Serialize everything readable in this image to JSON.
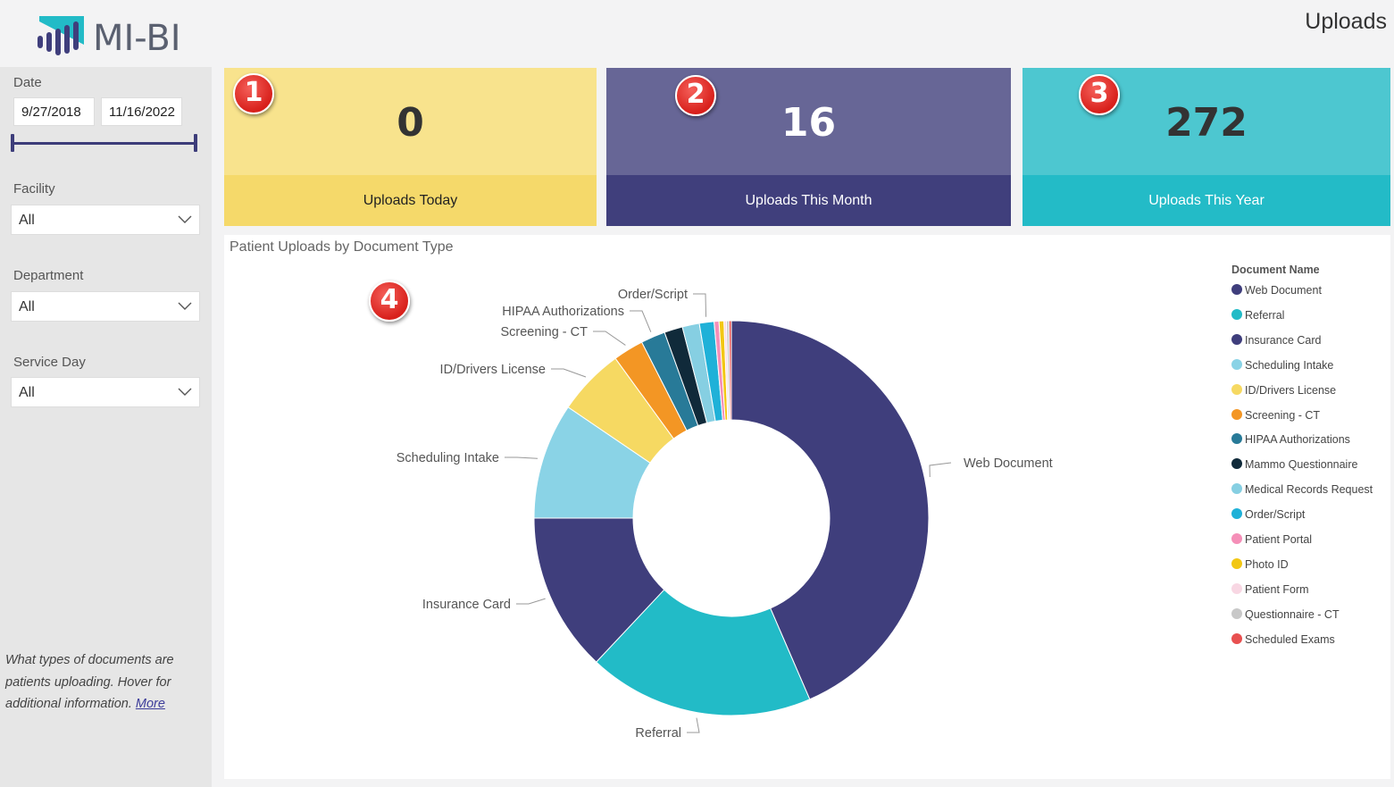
{
  "app": {
    "logo_text": "MI-BI",
    "page_title": "Uploads"
  },
  "filters": {
    "date": {
      "label": "Date",
      "start": "9/27/2018",
      "end": "11/16/2022"
    },
    "facility": {
      "label": "Facility",
      "value": "All"
    },
    "department": {
      "label": "Department",
      "value": "All"
    },
    "service_day": {
      "label": "Service Day",
      "value": "All"
    }
  },
  "side_note": {
    "text": "What types of documents are patients uploading. Hover for additional information.",
    "link": "More"
  },
  "kpis": [
    {
      "badge": "1",
      "value": "0",
      "label": "Uploads Today",
      "bg": "#f8e38d",
      "band": "#f5d96a",
      "value_color": "#333333",
      "label_color": "#222222"
    },
    {
      "badge": "2",
      "value": "16",
      "label": "Uploads This Month",
      "bg": "#676696",
      "band": "#403f7c",
      "value_color": "#ffffff",
      "label_color": "#ffffff"
    },
    {
      "badge": "3",
      "value": "272",
      "label": "Uploads This Year",
      "bg": "#4dc7d0",
      "band": "#23bbc7",
      "value_color": "#333333",
      "label_color": "#ffffff"
    }
  ],
  "chart_badge": "4",
  "chart_data": {
    "type": "donut",
    "title": "Patient Uploads by Document Type",
    "legend_title": "Document Name",
    "legend_position": "right",
    "slices": [
      {
        "name": "Web Document",
        "value": 43.5,
        "color": "#3f3e7c",
        "label": "Web Document"
      },
      {
        "name": "Referral",
        "value": 18.5,
        "color": "#22bbc7",
        "label": "Referral"
      },
      {
        "name": "Insurance Card",
        "value": 13.0,
        "color": "#3f3e7c",
        "label": "Insurance Card"
      },
      {
        "name": "Scheduling Intake",
        "value": 9.5,
        "color": "#8ad3e6",
        "label": "Scheduling Intake"
      },
      {
        "name": "ID/Drivers License",
        "value": 5.5,
        "color": "#f6d962",
        "label": "ID/Drivers License"
      },
      {
        "name": "Screening - CT",
        "value": 2.5,
        "color": "#f39624",
        "label": "Screening - CT"
      },
      {
        "name": "HIPAA Authorizations",
        "value": 2.0,
        "color": "#287a98",
        "label": "HIPAA Authorizations"
      },
      {
        "name": "Mammo Questionnaire",
        "value": 1.5,
        "color": "#102a3a",
        "label": ""
      },
      {
        "name": "Medical Records Request",
        "value": 1.4,
        "color": "#86cfe2",
        "label": ""
      },
      {
        "name": "Order/Script",
        "value": 1.2,
        "color": "#1fb1d8",
        "label": "Order/Script"
      },
      {
        "name": "Patient Portal",
        "value": 0.4,
        "color": "#f58fb8",
        "label": ""
      },
      {
        "name": "Photo ID",
        "value": 0.4,
        "color": "#f2c714",
        "label": ""
      },
      {
        "name": "Patient Form",
        "value": 0.2,
        "color": "#f8d7e3",
        "label": ""
      },
      {
        "name": "Questionnaire - CT",
        "value": 0.2,
        "color": "#c8c8c8",
        "label": ""
      },
      {
        "name": "Scheduled Exams",
        "value": 0.2,
        "color": "#e85050",
        "label": ""
      }
    ]
  }
}
